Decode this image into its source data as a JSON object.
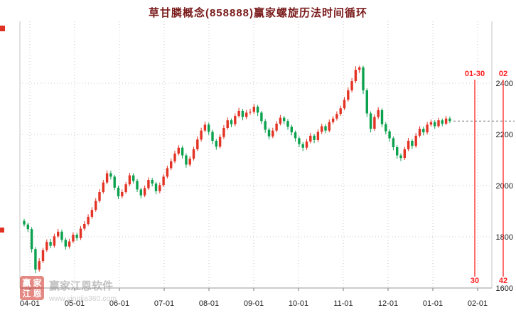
{
  "colors": {
    "up": "#e33324",
    "down": "#0ca14e",
    "grid": "#c9c9c9",
    "axis_text": "#1a1a1a",
    "cycle": "#fe2020",
    "title": "#7a1b1b",
    "watermark_text": "#8f8f8f"
  },
  "watermark": {
    "logo_chars": [
      "赢",
      "家",
      "江",
      "恩"
    ],
    "name": "赢家江恩软件",
    "url": "www.yingjia360.com"
  },
  "chart_data": {
    "type": "candlestick",
    "title": "草甘膦概念(858888)赢家螺旋历法时间循环",
    "x_tick_labels": [
      "04-01",
      "05-01",
      "06-01",
      "07-01",
      "08-01",
      "09-01",
      "10-01",
      "11-01",
      "12-01",
      "01-01",
      "02-01"
    ],
    "y_ticks": [
      2400,
      2200,
      2000,
      1800,
      1600
    ],
    "ylim": [
      1600,
      2640
    ],
    "grid": true,
    "legend": "none",
    "last_close": 2252,
    "cycle_lines": {
      "top_labels": [
        "01-30",
        "02"
      ],
      "bottom_labels": [
        "30",
        "42"
      ]
    },
    "candles": [
      [
        1862,
        1870,
        1840,
        1848
      ],
      [
        1848,
        1856,
        1818,
        1830
      ],
      [
        1830,
        1838,
        1738,
        1752
      ],
      [
        1752,
        1760,
        1658,
        1672
      ],
      [
        1672,
        1716,
        1664,
        1705
      ],
      [
        1705,
        1757,
        1698,
        1748
      ],
      [
        1748,
        1790,
        1741,
        1780
      ],
      [
        1780,
        1792,
        1755,
        1765
      ],
      [
        1765,
        1812,
        1758,
        1802
      ],
      [
        1802,
        1831,
        1795,
        1820
      ],
      [
        1820,
        1828,
        1778,
        1788
      ],
      [
        1788,
        1796,
        1750,
        1762
      ],
      [
        1762,
        1792,
        1754,
        1782
      ],
      [
        1782,
        1818,
        1775,
        1808
      ],
      [
        1808,
        1816,
        1784,
        1795
      ],
      [
        1795,
        1842,
        1788,
        1832
      ],
      [
        1832,
        1861,
        1824,
        1850
      ],
      [
        1850,
        1888,
        1843,
        1878
      ],
      [
        1878,
        1916,
        1870,
        1905
      ],
      [
        1905,
        1951,
        1898,
        1940
      ],
      [
        1940,
        1986,
        1933,
        1975
      ],
      [
        1975,
        2022,
        1968,
        2012
      ],
      [
        2012,
        2060,
        2005,
        2048
      ],
      [
        2048,
        2058,
        2024,
        2035
      ],
      [
        2035,
        2042,
        1982,
        1992
      ],
      [
        1992,
        2000,
        1948,
        1958
      ],
      [
        1958,
        1985,
        1950,
        1975
      ],
      [
        1975,
        2014,
        1968,
        2005
      ],
      [
        2005,
        2050,
        1998,
        2040
      ],
      [
        2040,
        2048,
        2008,
        2018
      ],
      [
        2018,
        2026,
        1975,
        1985
      ],
      [
        1985,
        1992,
        1950,
        1962
      ],
      [
        1962,
        2000,
        1955,
        1990
      ],
      [
        1990,
        2032,
        1983,
        2022
      ],
      [
        2022,
        2030,
        1997,
        2008
      ],
      [
        2008,
        2015,
        1966,
        1978
      ],
      [
        1978,
        2012,
        1970,
        2002
      ],
      [
        2002,
        2045,
        1995,
        2035
      ],
      [
        2035,
        2078,
        2028,
        2068
      ],
      [
        2068,
        2106,
        2060,
        2095
      ],
      [
        2095,
        2136,
        2088,
        2125
      ],
      [
        2125,
        2158,
        2118,
        2148
      ],
      [
        2148,
        2156,
        2106,
        2118
      ],
      [
        2118,
        2126,
        2070,
        2082
      ],
      [
        2082,
        2115,
        2074,
        2105
      ],
      [
        2105,
        2152,
        2098,
        2142
      ],
      [
        2142,
        2192,
        2135,
        2180
      ],
      [
        2180,
        2226,
        2172,
        2215
      ],
      [
        2215,
        2250,
        2208,
        2238
      ],
      [
        2238,
        2246,
        2198,
        2210
      ],
      [
        2210,
        2218,
        2162,
        2175
      ],
      [
        2175,
        2182,
        2140,
        2152
      ],
      [
        2152,
        2200,
        2145,
        2190
      ],
      [
        2190,
        2236,
        2182,
        2225
      ],
      [
        2225,
        2266,
        2218,
        2255
      ],
      [
        2255,
        2262,
        2228,
        2240
      ],
      [
        2240,
        2282,
        2232,
        2272
      ],
      [
        2272,
        2304,
        2265,
        2292
      ],
      [
        2292,
        2300,
        2255,
        2268
      ],
      [
        2268,
        2296,
        2260,
        2285
      ],
      [
        2285,
        2300,
        2276,
        2288
      ],
      [
        2288,
        2320,
        2280,
        2308
      ],
      [
        2308,
        2315,
        2272,
        2285
      ],
      [
        2285,
        2292,
        2240,
        2252
      ],
      [
        2252,
        2260,
        2206,
        2218
      ],
      [
        2218,
        2226,
        2180,
        2192
      ],
      [
        2192,
        2226,
        2185,
        2215
      ],
      [
        2215,
        2252,
        2208,
        2242
      ],
      [
        2242,
        2276,
        2235,
        2265
      ],
      [
        2265,
        2272,
        2240,
        2252
      ],
      [
        2252,
        2260,
        2218,
        2230
      ],
      [
        2230,
        2238,
        2196,
        2208
      ],
      [
        2208,
        2215,
        2172,
        2185
      ],
      [
        2185,
        2192,
        2150,
        2162
      ],
      [
        2162,
        2170,
        2135,
        2148
      ],
      [
        2148,
        2182,
        2140,
        2172
      ],
      [
        2172,
        2206,
        2165,
        2195
      ],
      [
        2195,
        2202,
        2166,
        2178
      ],
      [
        2178,
        2220,
        2170,
        2210
      ],
      [
        2210,
        2242,
        2202,
        2232
      ],
      [
        2232,
        2240,
        2204,
        2215
      ],
      [
        2215,
        2258,
        2208,
        2248
      ],
      [
        2248,
        2272,
        2240,
        2262
      ],
      [
        2262,
        2290,
        2254,
        2280
      ],
      [
        2280,
        2312,
        2272,
        2302
      ],
      [
        2302,
        2346,
        2295,
        2335
      ],
      [
        2335,
        2384,
        2328,
        2372
      ],
      [
        2372,
        2420,
        2364,
        2408
      ],
      [
        2408,
        2466,
        2400,
        2452
      ],
      [
        2452,
        2468,
        2440,
        2462
      ],
      [
        2462,
        2468,
        2358,
        2372
      ],
      [
        2372,
        2380,
        2268,
        2282
      ],
      [
        2282,
        2290,
        2208,
        2222
      ],
      [
        2222,
        2278,
        2214,
        2268
      ],
      [
        2268,
        2306,
        2260,
        2295
      ],
      [
        2295,
        2302,
        2228,
        2240
      ],
      [
        2240,
        2248,
        2200,
        2212
      ],
      [
        2212,
        2220,
        2172,
        2185
      ],
      [
        2185,
        2192,
        2138,
        2150
      ],
      [
        2150,
        2158,
        2105,
        2118
      ],
      [
        2118,
        2126,
        2096,
        2108
      ],
      [
        2108,
        2152,
        2100,
        2142
      ],
      [
        2142,
        2186,
        2135,
        2175
      ],
      [
        2175,
        2182,
        2143,
        2155
      ],
      [
        2155,
        2206,
        2148,
        2195
      ],
      [
        2195,
        2232,
        2188,
        2222
      ],
      [
        2222,
        2230,
        2196,
        2208
      ],
      [
        2208,
        2248,
        2200,
        2238
      ],
      [
        2238,
        2258,
        2230,
        2248
      ],
      [
        2248,
        2255,
        2222,
        2232
      ],
      [
        2232,
        2265,
        2226,
        2255
      ],
      [
        2255,
        2262,
        2232,
        2242
      ],
      [
        2242,
        2272,
        2236,
        2262
      ],
      [
        2262,
        2270,
        2244,
        2252
      ]
    ]
  }
}
